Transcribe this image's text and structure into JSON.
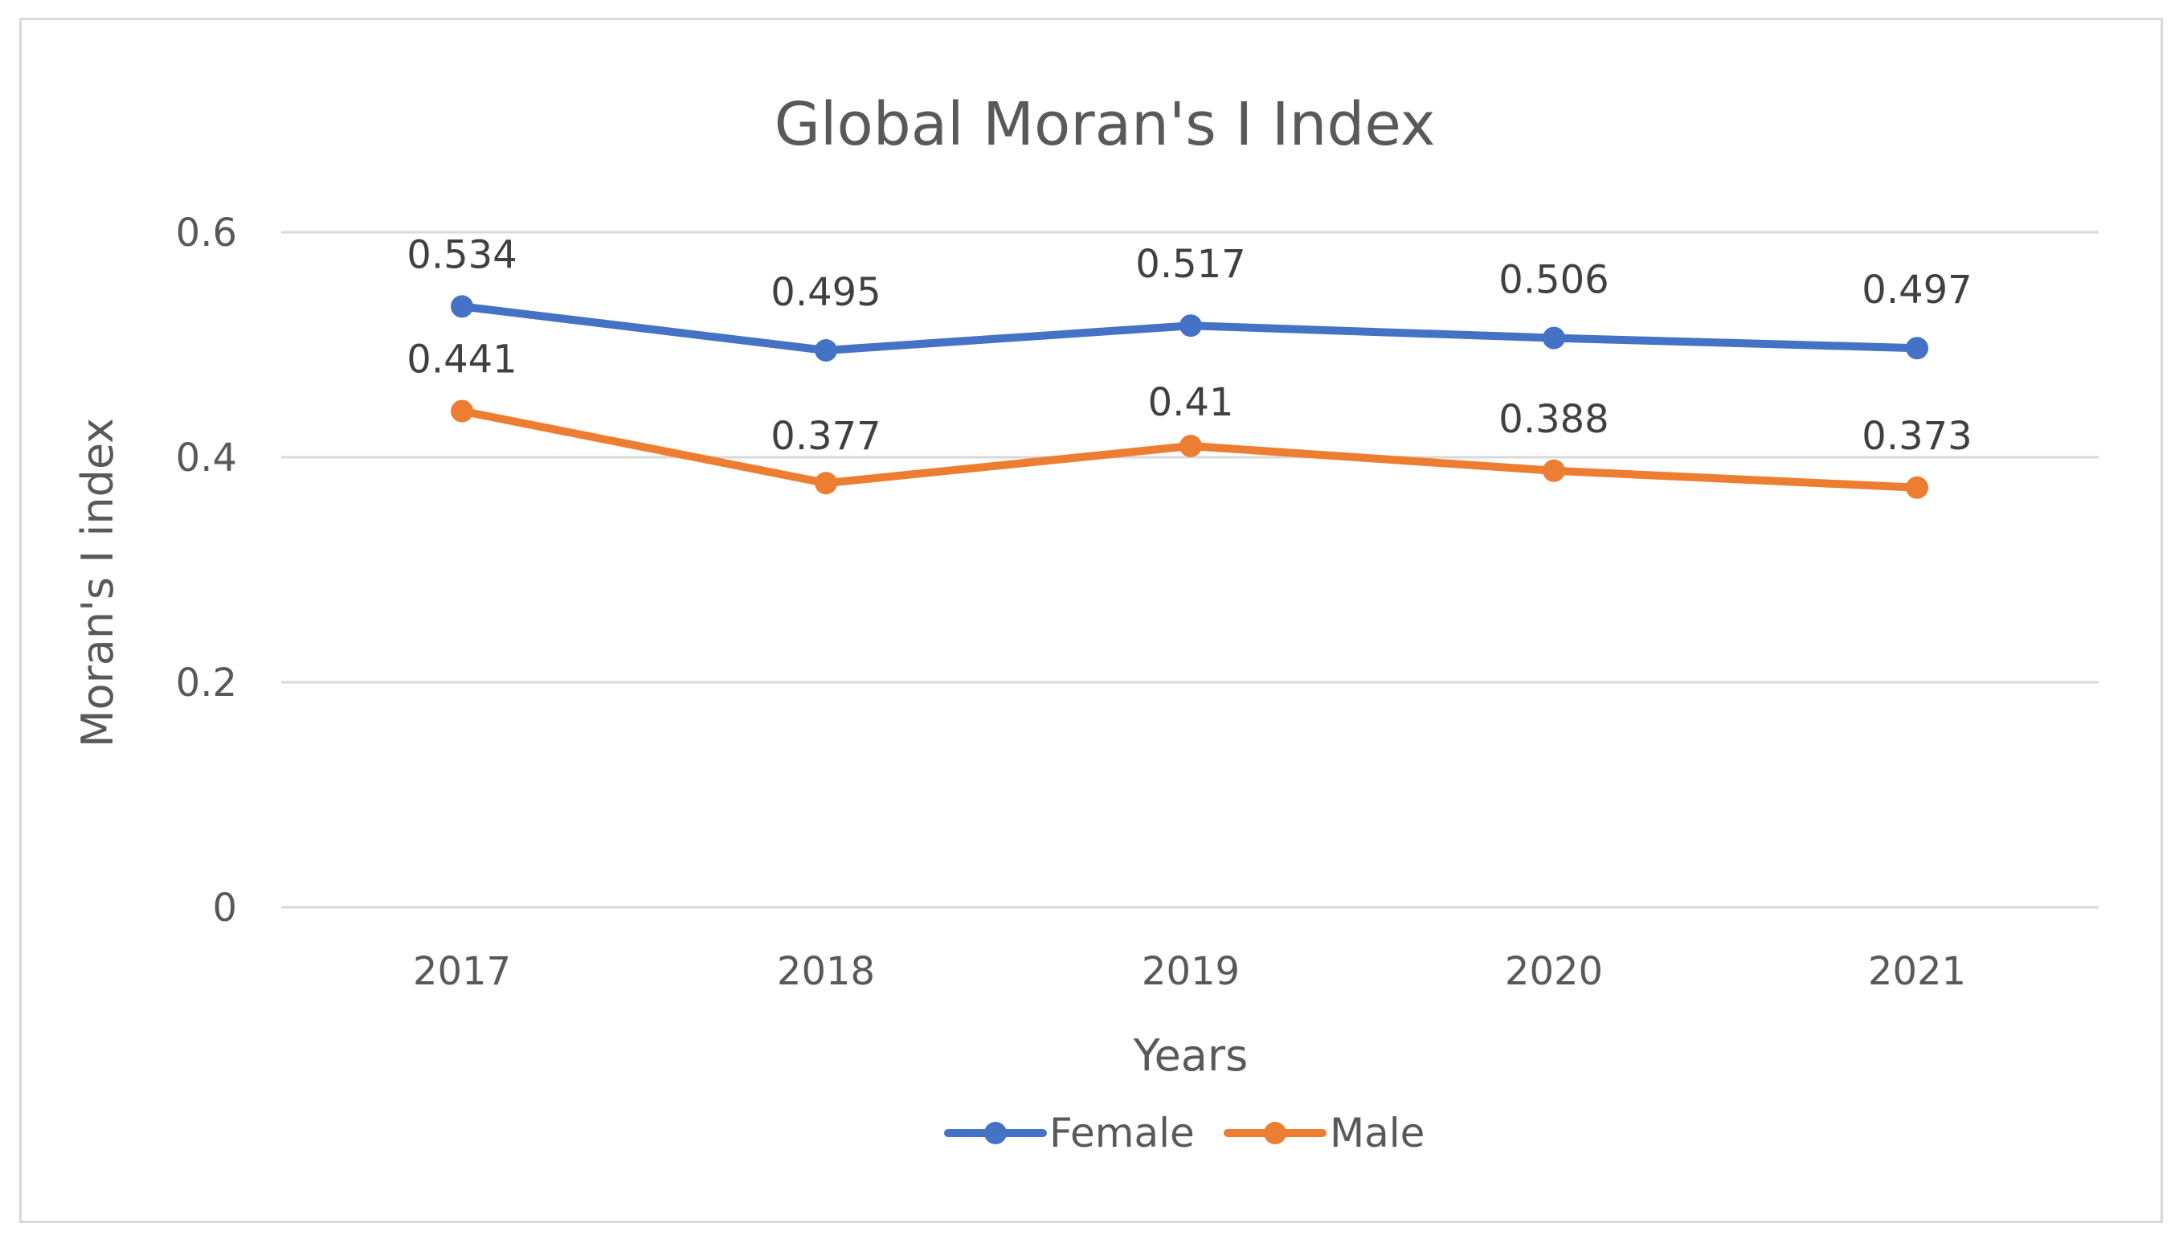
{
  "chart_data": {
    "type": "line",
    "title": "Global Moran's I Index",
    "xlabel": "Years",
    "ylabel": "Moran's I index",
    "categories": [
      "2017",
      "2018",
      "2019",
      "2020",
      "2021"
    ],
    "ylim": [
      0,
      0.6
    ],
    "yticks": [
      0,
      0.2,
      0.4,
      0.6
    ],
    "ytick_labels": [
      "0",
      "0.2",
      "0.4",
      "0.6"
    ],
    "grid": true,
    "legend_position": "bottom",
    "series": [
      {
        "name": "Female",
        "color": "#4472C4",
        "values": [
          0.534,
          0.495,
          0.517,
          0.506,
          0.497
        ],
        "labels": [
          "0.534",
          "0.495",
          "0.517",
          "0.506",
          "0.497"
        ]
      },
      {
        "name": "Male",
        "color": "#ED7D31",
        "values": [
          0.441,
          0.377,
          0.41,
          0.388,
          0.373
        ],
        "labels": [
          "0.441",
          "0.377",
          "0.41",
          "0.388",
          "0.373"
        ]
      }
    ]
  }
}
